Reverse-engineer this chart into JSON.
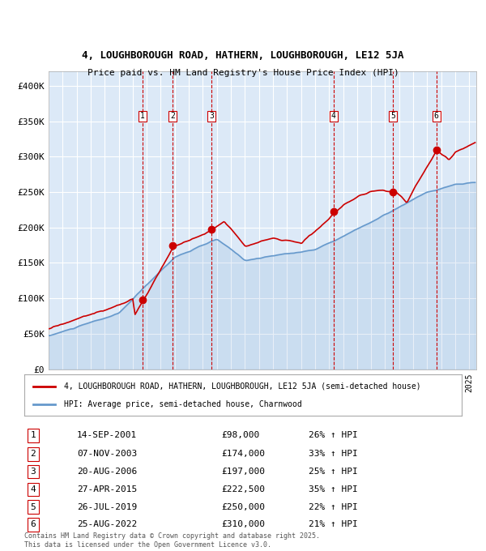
{
  "title_line1": "4, LOUGHBOROUGH ROAD, HATHERN, LOUGHBOROUGH, LE12 5JA",
  "title_line2": "Price paid vs. HM Land Registry's House Price Index (HPI)",
  "bg_color": "#dce9f7",
  "plot_bg_color": "#dce9f7",
  "grid_color": "#ffffff",
  "red_line_color": "#cc0000",
  "blue_line_color": "#6699cc",
  "sale_marker_color": "#cc0000",
  "dashed_line_color": "#cc0000",
  "ylabel_ticks": [
    "£0",
    "£50K",
    "£100K",
    "£150K",
    "£200K",
    "£250K",
    "£300K",
    "£350K",
    "£400K"
  ],
  "ytick_values": [
    0,
    50000,
    100000,
    150000,
    200000,
    250000,
    300000,
    350000,
    400000
  ],
  "ylim": [
    0,
    420000
  ],
  "xlim_start": 1995.0,
  "xlim_end": 2025.5,
  "sales": [
    {
      "num": 1,
      "date": "14-SEP-2001",
      "year": 2001.71,
      "price": 98000,
      "pct": "26%",
      "label": "1"
    },
    {
      "num": 2,
      "date": "07-NOV-2003",
      "year": 2003.85,
      "price": 174000,
      "pct": "33%",
      "label": "2"
    },
    {
      "num": 3,
      "date": "20-AUG-2006",
      "year": 2006.63,
      "price": 197000,
      "pct": "25%",
      "label": "3"
    },
    {
      "num": 4,
      "date": "27-APR-2015",
      "year": 2015.32,
      "price": 222500,
      "pct": "35%",
      "label": "4"
    },
    {
      "num": 5,
      "date": "26-JUL-2019",
      "year": 2019.57,
      "price": 250000,
      "pct": "22%",
      "label": "5"
    },
    {
      "num": 6,
      "date": "25-AUG-2022",
      "year": 2022.65,
      "price": 310000,
      "pct": "21%",
      "label": "6"
    }
  ],
  "legend_line1": "4, LOUGHBOROUGH ROAD, HATHERN, LOUGHBOROUGH, LE12 5JA (semi-detached house)",
  "legend_line2": "HPI: Average price, semi-detached house, Charnwood",
  "footer": "Contains HM Land Registry data © Crown copyright and database right 2025.\nThis data is licensed under the Open Government Licence v3.0."
}
